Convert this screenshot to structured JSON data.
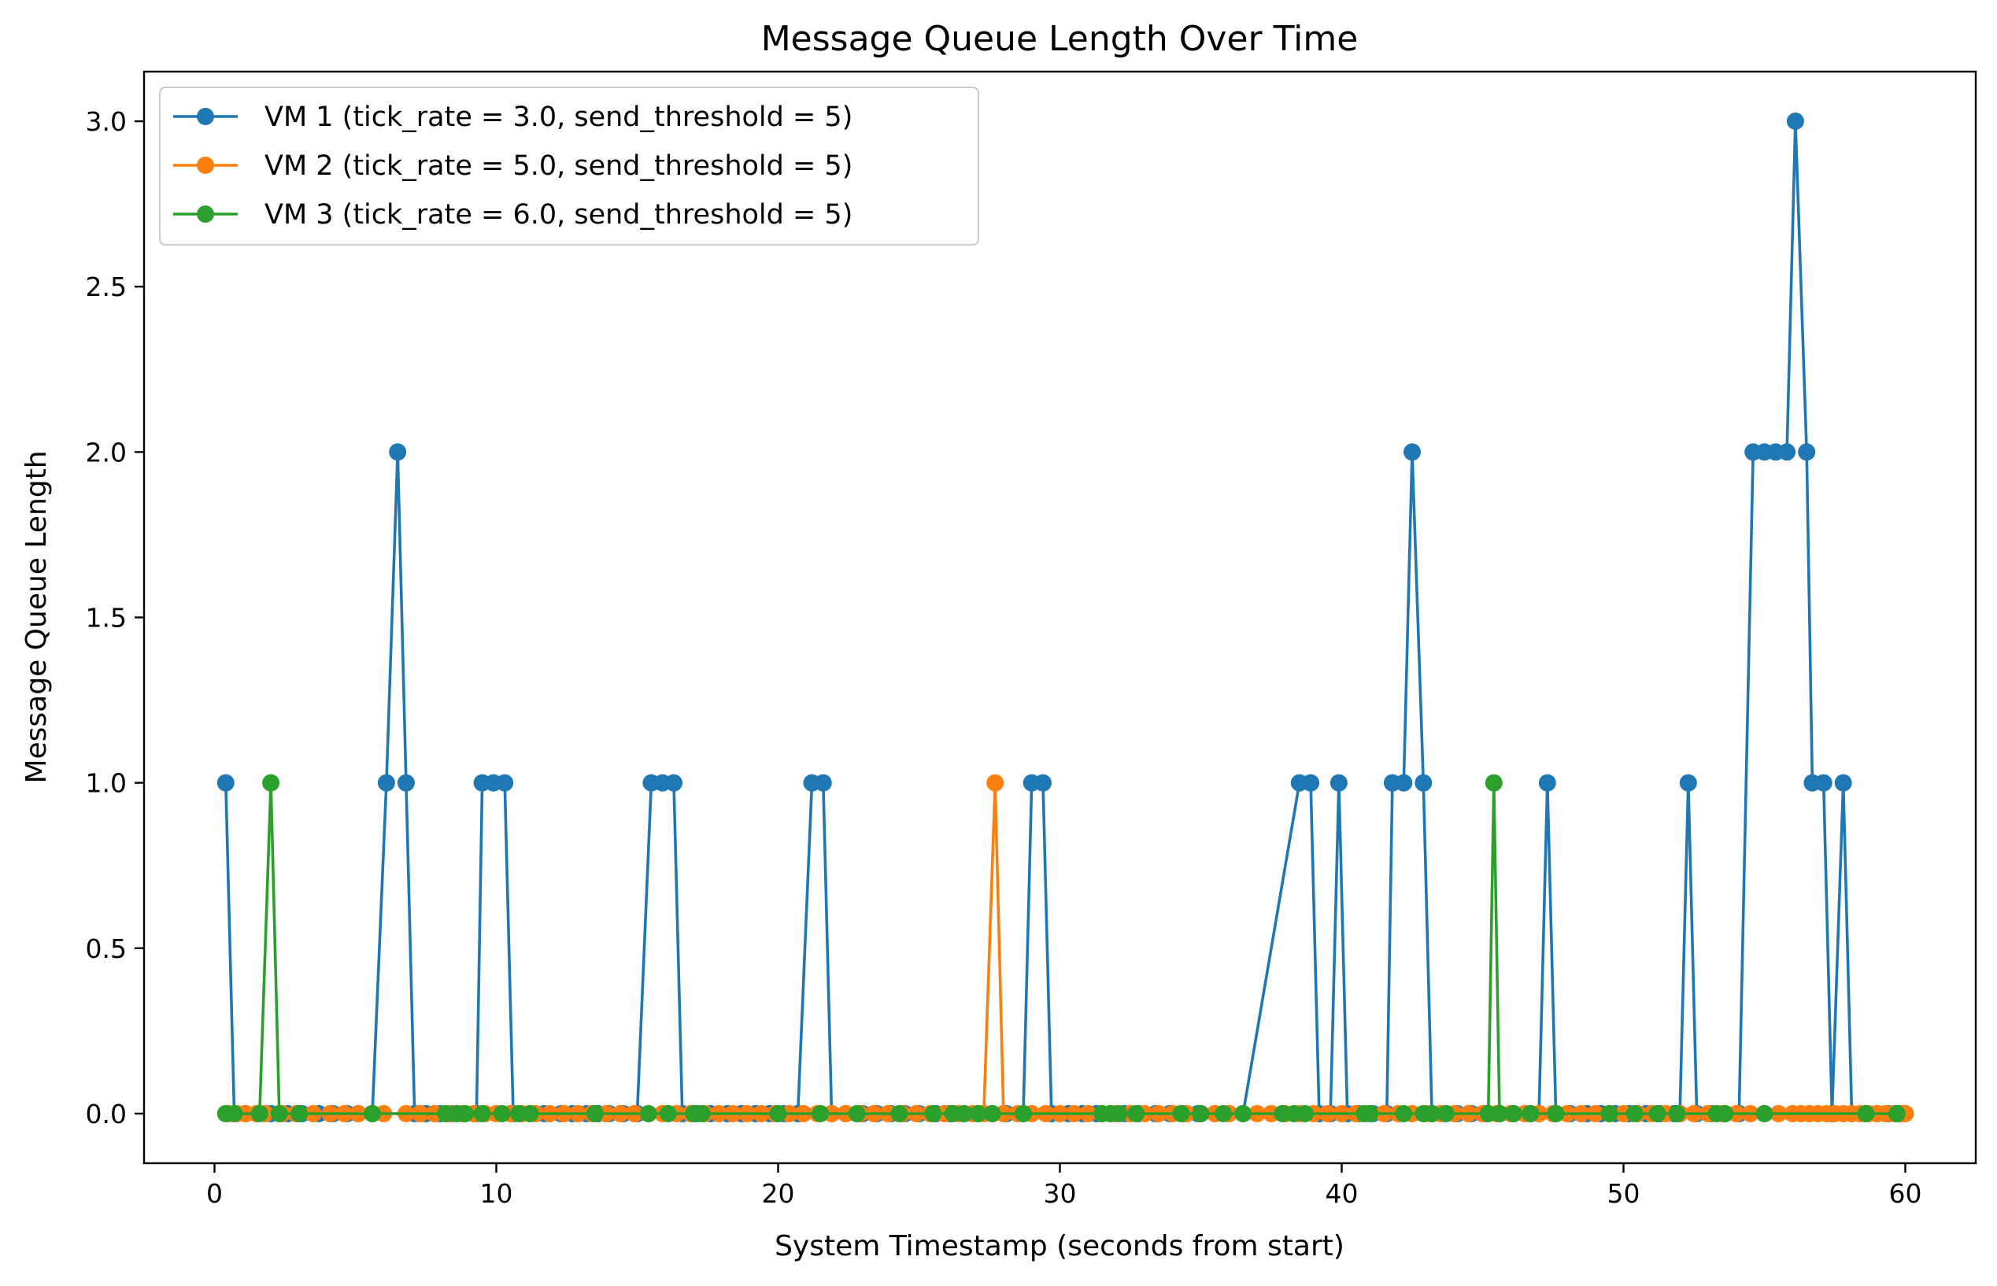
{
  "chart_data": {
    "type": "line",
    "title": "Message Queue Length Over Time",
    "xlabel": "System Timestamp (seconds from start)",
    "ylabel": "Message Queue Length",
    "xlim": [
      -2.5,
      62.5
    ],
    "ylim": [
      -0.15,
      3.15
    ],
    "xticks": [
      0,
      10,
      20,
      30,
      40,
      50,
      60
    ],
    "xtick_labels": [
      "0",
      "10",
      "20",
      "30",
      "40",
      "50",
      "60"
    ],
    "yticks": [
      0.0,
      0.5,
      1.0,
      1.5,
      2.0,
      2.5,
      3.0
    ],
    "ytick_labels": [
      "0.0",
      "0.5",
      "1.0",
      "1.5",
      "2.0",
      "2.5",
      "3.0"
    ],
    "grid": false,
    "legend_position": "upper-left",
    "series": [
      {
        "name": "VM 1 (tick_rate = 3.0, send_threshold = 5)",
        "color": "#1f77b4",
        "marker": "circle",
        "points": [
          [
            0.4,
            1
          ],
          [
            0.7,
            0
          ],
          [
            1.1,
            0
          ],
          [
            1.5,
            0
          ],
          [
            2.0,
            0
          ],
          [
            2.6,
            0
          ],
          [
            3.1,
            0
          ],
          [
            3.7,
            0
          ],
          [
            4.2,
            0
          ],
          [
            4.7,
            0
          ],
          [
            5.1,
            0
          ],
          [
            5.6,
            0
          ],
          [
            6.1,
            1
          ],
          [
            6.5,
            2
          ],
          [
            6.8,
            1
          ],
          [
            7.1,
            0
          ],
          [
            7.5,
            0
          ],
          [
            8.0,
            0
          ],
          [
            8.4,
            0
          ],
          [
            8.8,
            0
          ],
          [
            9.3,
            0
          ],
          [
            9.5,
            1
          ],
          [
            9.9,
            1
          ],
          [
            10.3,
            1
          ],
          [
            10.6,
            0
          ],
          [
            11.2,
            0
          ],
          [
            11.7,
            0
          ],
          [
            12.3,
            0
          ],
          [
            12.7,
            0
          ],
          [
            13.2,
            0
          ],
          [
            13.6,
            0
          ],
          [
            14.0,
            0
          ],
          [
            14.5,
            0
          ],
          [
            15.0,
            0
          ],
          [
            15.5,
            1
          ],
          [
            15.9,
            1
          ],
          [
            16.3,
            1
          ],
          [
            16.6,
            0
          ],
          [
            17.1,
            0
          ],
          [
            17.6,
            0
          ],
          [
            18.2,
            0
          ],
          [
            18.7,
            0
          ],
          [
            19.2,
            0
          ],
          [
            19.7,
            0
          ],
          [
            20.2,
            0
          ],
          [
            20.7,
            0
          ],
          [
            21.2,
            1
          ],
          [
            21.6,
            1
          ],
          [
            21.9,
            0
          ],
          [
            22.4,
            0
          ],
          [
            23.0,
            0
          ],
          [
            23.5,
            0
          ],
          [
            24.0,
            0
          ],
          [
            24.5,
            0
          ],
          [
            25.0,
            0
          ],
          [
            25.6,
            0
          ],
          [
            26.1,
            0
          ],
          [
            26.6,
            0
          ],
          [
            27.1,
            0
          ],
          [
            27.6,
            0
          ],
          [
            28.1,
            0
          ],
          [
            28.7,
            0
          ],
          [
            29.0,
            1
          ],
          [
            29.4,
            1
          ],
          [
            29.7,
            0
          ],
          [
            30.3,
            0
          ],
          [
            30.8,
            0
          ],
          [
            31.3,
            0
          ],
          [
            31.8,
            0
          ],
          [
            32.3,
            0
          ],
          [
            32.8,
            0
          ],
          [
            33.4,
            0
          ],
          [
            33.9,
            0
          ],
          [
            34.4,
            0
          ],
          [
            34.9,
            0
          ],
          [
            35.5,
            0
          ],
          [
            36.0,
            0
          ],
          [
            36.5,
            0
          ],
          [
            38.5,
            1
          ],
          [
            38.9,
            1
          ],
          [
            39.2,
            0
          ],
          [
            39.6,
            0
          ],
          [
            39.9,
            1
          ],
          [
            40.2,
            0
          ],
          [
            40.6,
            0
          ],
          [
            41.1,
            0
          ],
          [
            41.6,
            0
          ],
          [
            41.8,
            1
          ],
          [
            42.2,
            1
          ],
          [
            42.5,
            2
          ],
          [
            42.9,
            1
          ],
          [
            43.2,
            0
          ],
          [
            43.7,
            0
          ],
          [
            44.1,
            0
          ],
          [
            44.6,
            0
          ],
          [
            45.1,
            0
          ],
          [
            45.6,
            0
          ],
          [
            46.1,
            0
          ],
          [
            46.7,
            0
          ],
          [
            47.0,
            0
          ],
          [
            47.3,
            1
          ],
          [
            47.6,
            0
          ],
          [
            48.1,
            0
          ],
          [
            48.7,
            0
          ],
          [
            49.2,
            0
          ],
          [
            49.7,
            0
          ],
          [
            50.2,
            0
          ],
          [
            50.8,
            0
          ],
          [
            51.3,
            0
          ],
          [
            51.8,
            0
          ],
          [
            52.0,
            0
          ],
          [
            52.3,
            1
          ],
          [
            52.6,
            0
          ],
          [
            53.1,
            0
          ],
          [
            53.6,
            0
          ],
          [
            54.1,
            0
          ],
          [
            54.6,
            2
          ],
          [
            55.0,
            2
          ],
          [
            55.4,
            2
          ],
          [
            55.8,
            2
          ],
          [
            56.1,
            3
          ],
          [
            56.5,
            2
          ],
          [
            56.7,
            1
          ],
          [
            57.1,
            1
          ],
          [
            57.4,
            0
          ],
          [
            57.8,
            1
          ],
          [
            58.1,
            0
          ],
          [
            58.6,
            0
          ],
          [
            59.0,
            0
          ],
          [
            59.4,
            0
          ],
          [
            59.8,
            0
          ]
        ]
      },
      {
        "name": "VM 2 (tick_rate = 5.0, send_threshold = 5)",
        "color": "#ff7f0e",
        "marker": "circle",
        "points": [
          [
            0.5,
            0
          ],
          [
            0.8,
            0
          ],
          [
            1.1,
            0
          ],
          [
            1.5,
            0
          ],
          [
            1.8,
            0
          ],
          [
            2.4,
            0
          ],
          [
            2.9,
            0
          ],
          [
            3.5,
            0
          ],
          [
            4.1,
            0
          ],
          [
            4.6,
            0
          ],
          [
            5.1,
            0
          ],
          [
            5.6,
            0
          ],
          [
            6.0,
            0
          ],
          [
            6.8,
            0
          ],
          [
            7.3,
            0
          ],
          [
            7.8,
            0
          ],
          [
            8.3,
            0
          ],
          [
            8.8,
            0
          ],
          [
            9.2,
            0
          ],
          [
            9.6,
            0
          ],
          [
            10.0,
            0
          ],
          [
            10.5,
            0
          ],
          [
            10.9,
            0
          ],
          [
            11.4,
            0
          ],
          [
            11.9,
            0
          ],
          [
            12.4,
            0
          ],
          [
            12.9,
            0
          ],
          [
            13.4,
            0
          ],
          [
            13.9,
            0
          ],
          [
            14.4,
            0
          ],
          [
            14.9,
            0
          ],
          [
            15.4,
            0
          ],
          [
            15.9,
            0
          ],
          [
            16.4,
            0
          ],
          [
            16.9,
            0
          ],
          [
            17.4,
            0
          ],
          [
            17.9,
            0
          ],
          [
            18.4,
            0
          ],
          [
            18.9,
            0
          ],
          [
            19.4,
            0
          ],
          [
            19.9,
            0
          ],
          [
            20.4,
            0
          ],
          [
            20.9,
            0
          ],
          [
            21.4,
            0
          ],
          [
            21.9,
            0
          ],
          [
            22.4,
            0
          ],
          [
            22.9,
            0
          ],
          [
            23.4,
            0
          ],
          [
            23.9,
            0
          ],
          [
            24.4,
            0
          ],
          [
            24.9,
            0
          ],
          [
            25.4,
            0
          ],
          [
            25.9,
            0
          ],
          [
            26.4,
            0
          ],
          [
            26.9,
            0
          ],
          [
            27.3,
            0
          ],
          [
            27.7,
            1
          ],
          [
            28.0,
            0
          ],
          [
            28.5,
            0
          ],
          [
            29.0,
            0
          ],
          [
            29.5,
            0
          ],
          [
            30.0,
            0
          ],
          [
            30.5,
            0
          ],
          [
            31.0,
            0
          ],
          [
            31.5,
            0
          ],
          [
            32.0,
            0
          ],
          [
            32.5,
            0
          ],
          [
            33.0,
            0
          ],
          [
            33.5,
            0
          ],
          [
            34.0,
            0
          ],
          [
            34.5,
            0
          ],
          [
            35.0,
            0
          ],
          [
            35.5,
            0
          ],
          [
            36.0,
            0
          ],
          [
            36.5,
            0
          ],
          [
            37.0,
            0
          ],
          [
            37.5,
            0
          ],
          [
            38.0,
            0
          ],
          [
            38.5,
            0
          ],
          [
            39.0,
            0
          ],
          [
            39.5,
            0
          ],
          [
            40.0,
            0
          ],
          [
            40.5,
            0
          ],
          [
            41.0,
            0
          ],
          [
            41.5,
            0
          ],
          [
            42.0,
            0
          ],
          [
            42.5,
            0
          ],
          [
            43.0,
            0
          ],
          [
            43.5,
            0
          ],
          [
            44.0,
            0
          ],
          [
            44.5,
            0
          ],
          [
            45.0,
            0
          ],
          [
            45.5,
            0
          ],
          [
            46.0,
            0
          ],
          [
            46.5,
            0
          ],
          [
            47.0,
            0
          ],
          [
            47.5,
            0
          ],
          [
            48.0,
            0
          ],
          [
            48.5,
            0
          ],
          [
            49.0,
            0
          ],
          [
            49.5,
            0
          ],
          [
            50.0,
            0
          ],
          [
            50.5,
            0
          ],
          [
            51.0,
            0
          ],
          [
            51.5,
            0
          ],
          [
            52.0,
            0
          ],
          [
            52.5,
            0
          ],
          [
            53.0,
            0
          ],
          [
            53.5,
            0
          ],
          [
            54.0,
            0
          ],
          [
            54.5,
            0
          ],
          [
            55.0,
            0
          ],
          [
            55.5,
            0
          ],
          [
            56.0,
            0
          ],
          [
            56.3,
            0
          ],
          [
            56.6,
            0
          ],
          [
            56.9,
            0
          ],
          [
            57.2,
            0
          ],
          [
            57.5,
            0
          ],
          [
            57.8,
            0
          ],
          [
            58.1,
            0
          ],
          [
            58.4,
            0
          ],
          [
            58.7,
            0
          ],
          [
            59.0,
            0
          ],
          [
            59.3,
            0
          ],
          [
            59.6,
            0
          ],
          [
            59.9,
            0
          ],
          [
            60.0,
            0
          ]
        ]
      },
      {
        "name": "VM 3 (tick_rate = 6.0, send_threshold = 5)",
        "color": "#2ca02c",
        "marker": "circle",
        "points": [
          [
            0.4,
            0
          ],
          [
            0.7,
            0
          ],
          [
            1.6,
            0
          ],
          [
            2.0,
            1
          ],
          [
            2.3,
            0
          ],
          [
            3.0,
            0
          ],
          [
            5.6,
            0
          ],
          [
            8.2,
            0
          ],
          [
            8.6,
            0
          ],
          [
            8.9,
            0
          ],
          [
            9.5,
            0
          ],
          [
            10.2,
            0
          ],
          [
            10.8,
            0
          ],
          [
            11.2,
            0
          ],
          [
            13.5,
            0
          ],
          [
            15.4,
            0
          ],
          [
            16.1,
            0
          ],
          [
            17.0,
            0
          ],
          [
            17.3,
            0
          ],
          [
            20.0,
            0
          ],
          [
            21.5,
            0
          ],
          [
            22.8,
            0
          ],
          [
            24.3,
            0
          ],
          [
            25.5,
            0
          ],
          [
            26.2,
            0
          ],
          [
            26.6,
            0
          ],
          [
            27.1,
            0
          ],
          [
            27.6,
            0
          ],
          [
            28.7,
            0
          ],
          [
            31.5,
            0
          ],
          [
            31.8,
            0
          ],
          [
            32.1,
            0
          ],
          [
            32.7,
            0
          ],
          [
            34.3,
            0
          ],
          [
            35.0,
            0
          ],
          [
            35.8,
            0
          ],
          [
            36.5,
            0
          ],
          [
            37.9,
            0
          ],
          [
            38.3,
            0
          ],
          [
            38.7,
            0
          ],
          [
            40.8,
            0
          ],
          [
            41.0,
            0
          ],
          [
            42.2,
            0
          ],
          [
            42.9,
            0
          ],
          [
            43.2,
            0
          ],
          [
            43.7,
            0
          ],
          [
            45.2,
            0
          ],
          [
            45.4,
            1
          ],
          [
            45.6,
            0
          ],
          [
            46.1,
            0
          ],
          [
            46.7,
            0
          ],
          [
            47.6,
            0
          ],
          [
            49.5,
            0
          ],
          [
            50.4,
            0
          ],
          [
            51.2,
            0
          ],
          [
            51.9,
            0
          ],
          [
            53.3,
            0
          ],
          [
            53.6,
            0
          ],
          [
            55.0,
            0
          ],
          [
            58.6,
            0
          ],
          [
            59.7,
            0
          ]
        ]
      }
    ]
  }
}
